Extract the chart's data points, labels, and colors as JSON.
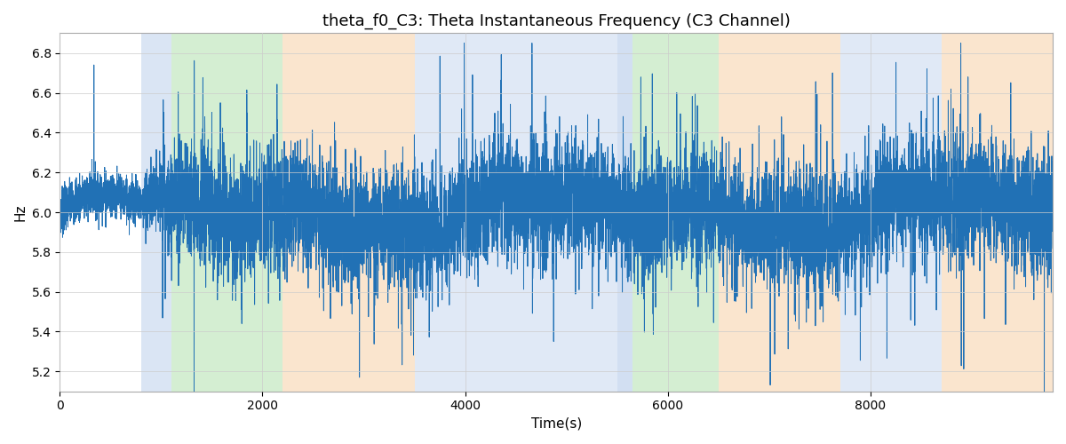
{
  "title": "theta_f0_C3: Theta Instantaneous Frequency (C3 Channel)",
  "xlabel": "Time(s)",
  "ylabel": "Hz",
  "xlim": [
    0,
    9800
  ],
  "ylim": [
    5.1,
    6.9
  ],
  "yticks": [
    5.2,
    5.4,
    5.6,
    5.8,
    6.0,
    6.2,
    6.4,
    6.6,
    6.8
  ],
  "xticks": [
    0,
    2000,
    4000,
    6000,
    8000
  ],
  "line_color": "#2171b5",
  "line_width": 0.7,
  "background_color": "#ffffff",
  "grid_color": "#cccccc",
  "title_fontsize": 13,
  "label_fontsize": 11,
  "shaded_regions": [
    {
      "xmin": 800,
      "xmax": 1100,
      "color": "#aec6e8",
      "alpha": 0.45
    },
    {
      "xmin": 1100,
      "xmax": 2200,
      "color": "#90d48a",
      "alpha": 0.38
    },
    {
      "xmin": 2200,
      "xmax": 3500,
      "color": "#f5c99a",
      "alpha": 0.48
    },
    {
      "xmin": 3500,
      "xmax": 5500,
      "color": "#aec6e8",
      "alpha": 0.38
    },
    {
      "xmin": 5500,
      "xmax": 5650,
      "color": "#aec6e8",
      "alpha": 0.55
    },
    {
      "xmin": 5650,
      "xmax": 6500,
      "color": "#90d48a",
      "alpha": 0.38
    },
    {
      "xmin": 6500,
      "xmax": 7700,
      "color": "#f5c99a",
      "alpha": 0.48
    },
    {
      "xmin": 7700,
      "xmax": 8700,
      "color": "#aec6e8",
      "alpha": 0.38
    },
    {
      "xmin": 8700,
      "xmax": 9800,
      "color": "#f5c99a",
      "alpha": 0.48
    }
  ],
  "seed": 7,
  "n_points": 9800
}
